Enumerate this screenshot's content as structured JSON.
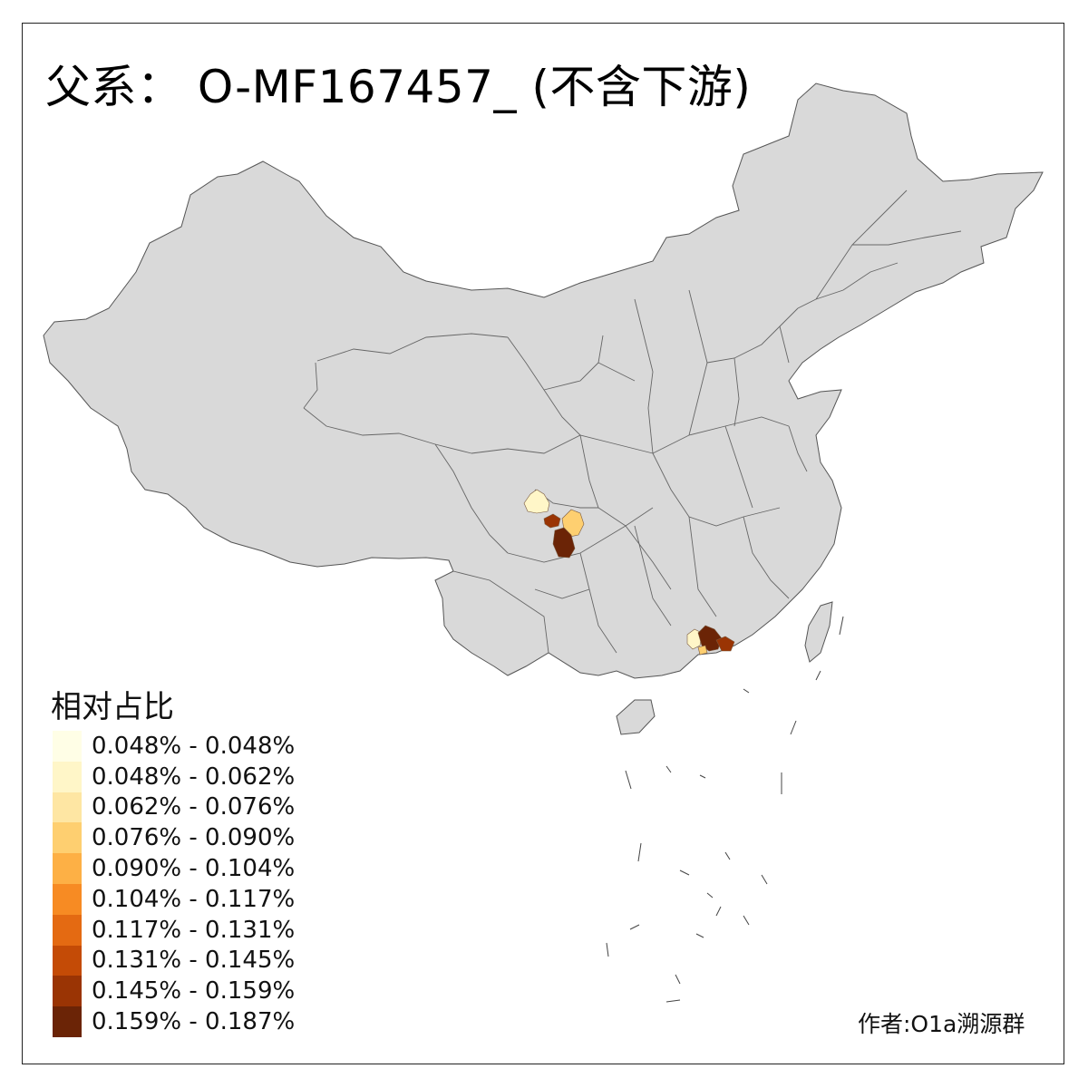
{
  "title": "父系： O-MF167457_ (不含下游)",
  "legend": {
    "title": "相对占比",
    "items": [
      {
        "label": "0.048% - 0.048%",
        "color": "#fffee6"
      },
      {
        "label": "0.048% - 0.062%",
        "color": "#fff6c8"
      },
      {
        "label": "0.062% - 0.076%",
        "color": "#fee6a3"
      },
      {
        "label": "0.076% - 0.090%",
        "color": "#fecf70"
      },
      {
        "label": "0.090% - 0.104%",
        "color": "#fdb045"
      },
      {
        "label": "0.104% - 0.117%",
        "color": "#f78b23"
      },
      {
        "label": "0.117% - 0.131%",
        "color": "#e46a12"
      },
      {
        "label": "0.131% - 0.145%",
        "color": "#c44b06"
      },
      {
        "label": "0.145% - 0.159%",
        "color": "#9a3404"
      },
      {
        "label": "0.159% - 0.187%",
        "color": "#6b2406"
      }
    ]
  },
  "map": {
    "base_fill": "#d9d9d9",
    "border_color": "#555555",
    "highlight_colors": {
      "low": "#fff6c8",
      "mid": "#fecf70",
      "high": "#9a3404",
      "top": "#6b2406"
    }
  },
  "credit": "作者:O1a溯源群"
}
